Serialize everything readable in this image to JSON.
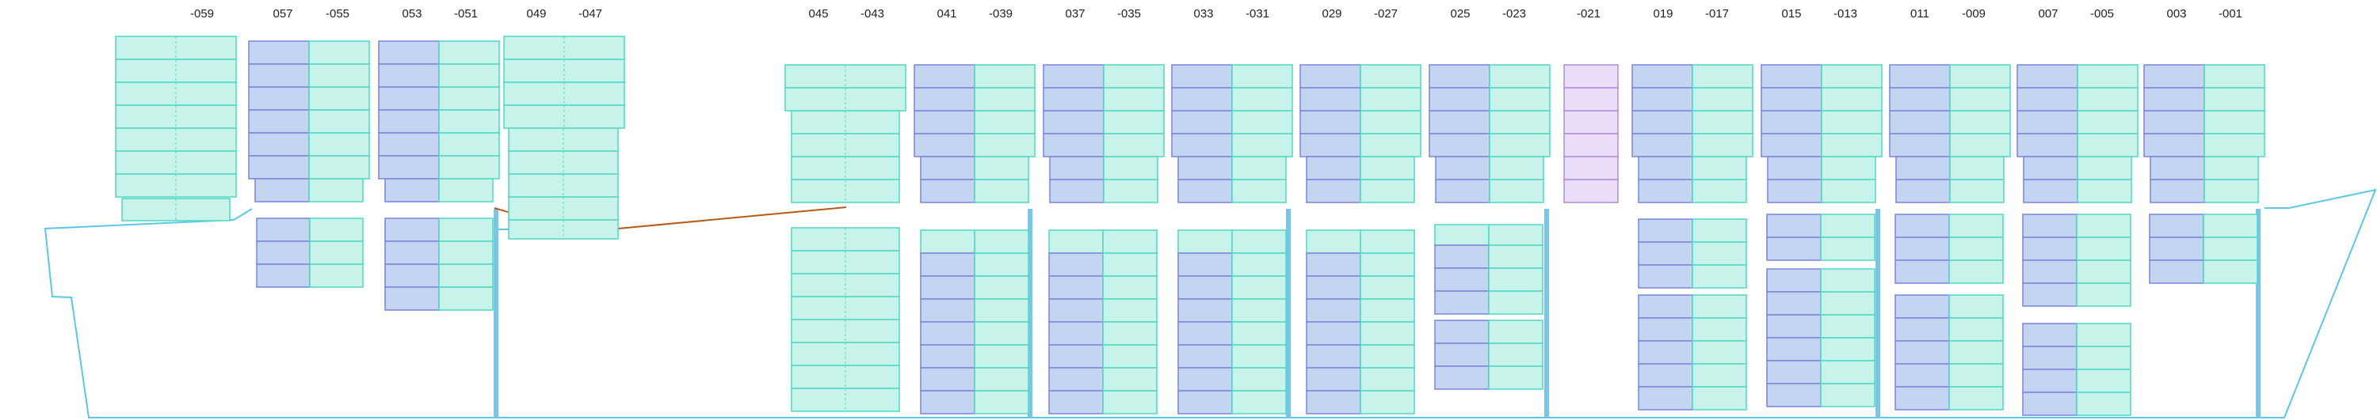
{
  "bay_labels": [
    {
      "bay": "-059"
    },
    {
      "bay": "057"
    },
    {
      "bay": "-055"
    },
    {
      "bay": "053"
    },
    {
      "bay": "-051"
    },
    {
      "bay": "049"
    },
    {
      "bay": "-047"
    },
    {
      "bay": "045"
    },
    {
      "bay": "-043"
    },
    {
      "bay": "041"
    },
    {
      "bay": "-039"
    },
    {
      "bay": "037"
    },
    {
      "bay": "-035"
    },
    {
      "bay": "033"
    },
    {
      "bay": "-031"
    },
    {
      "bay": "029"
    },
    {
      "bay": "-027"
    },
    {
      "bay": "025"
    },
    {
      "bay": "-023"
    },
    {
      "bay": "-021"
    },
    {
      "bay": "019"
    },
    {
      "bay": "-017"
    },
    {
      "bay": "015"
    },
    {
      "bay": "-013"
    },
    {
      "bay": "011"
    },
    {
      "bay": "-009"
    },
    {
      "bay": "007"
    },
    {
      "bay": "-005"
    },
    {
      "bay": "003"
    },
    {
      "bay": "-001"
    }
  ],
  "colors": {
    "forty_ft_slot": "#c3d5f0",
    "forty_ft_border": "#7d84da",
    "twenty_ft_slot": "#c8f3ea",
    "twenty_ft_border": "#4fd8c2",
    "special_slot": "#e9ddf8",
    "special_border": "#b08be0",
    "hull_outline": "#5bc8e6",
    "bulkhead": "#78c7ea",
    "lashing_line": "#b65a16",
    "label_text": "#222222"
  }
}
